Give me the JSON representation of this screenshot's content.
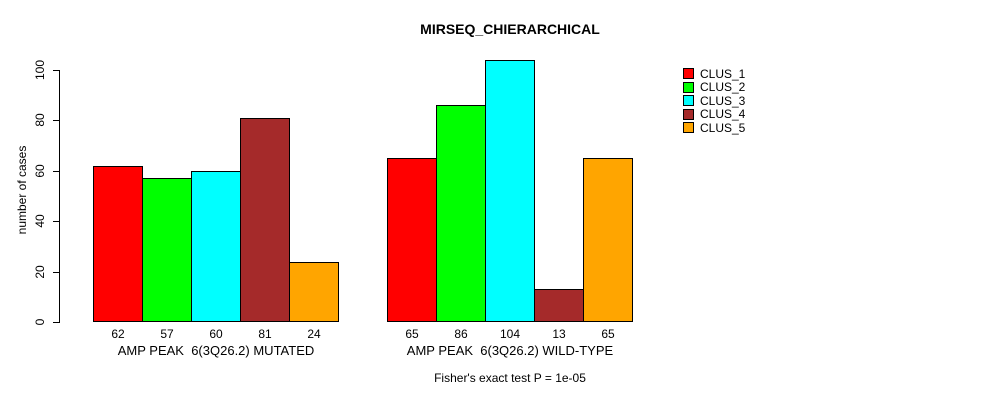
{
  "title": "MIRSEQ_CHIERARCHICAL",
  "chart_data": {
    "type": "bar",
    "title": "MIRSEQ_CHIERARCHICAL",
    "ylabel": "number of cases",
    "xlabel": "",
    "ylim": [
      0,
      104
    ],
    "yticks": [
      0,
      20,
      40,
      60,
      80,
      100
    ],
    "grid": false,
    "legend_position": "right",
    "bar_border_color": "#000000",
    "categories": [
      "AMP PEAK  6(3Q26.2) MUTATED",
      "AMP PEAK  6(3Q26.2) WILD-TYPE"
    ],
    "series": [
      {
        "name": "CLUS_1",
        "color": "#FF0000",
        "values": [
          62,
          65
        ]
      },
      {
        "name": "CLUS_2",
        "color": "#00FF00",
        "values": [
          57,
          86
        ]
      },
      {
        "name": "CLUS_3",
        "color": "#00FFFF",
        "values": [
          60,
          104
        ]
      },
      {
        "name": "CLUS_4",
        "color": "#A52A2A",
        "values": [
          81,
          13
        ]
      },
      {
        "name": "CLUS_5",
        "color": "#FFA500",
        "values": [
          24,
          65
        ]
      }
    ],
    "bar_value_labels": {
      "AMP PEAK  6(3Q26.2) MUTATED": [
        62,
        57,
        60,
        81,
        24
      ],
      "AMP PEAK  6(3Q26.2) WILD-TYPE": [
        65,
        86,
        104,
        13,
        65
      ]
    },
    "annotation": "Fisher's exact test P = 1e-05"
  }
}
